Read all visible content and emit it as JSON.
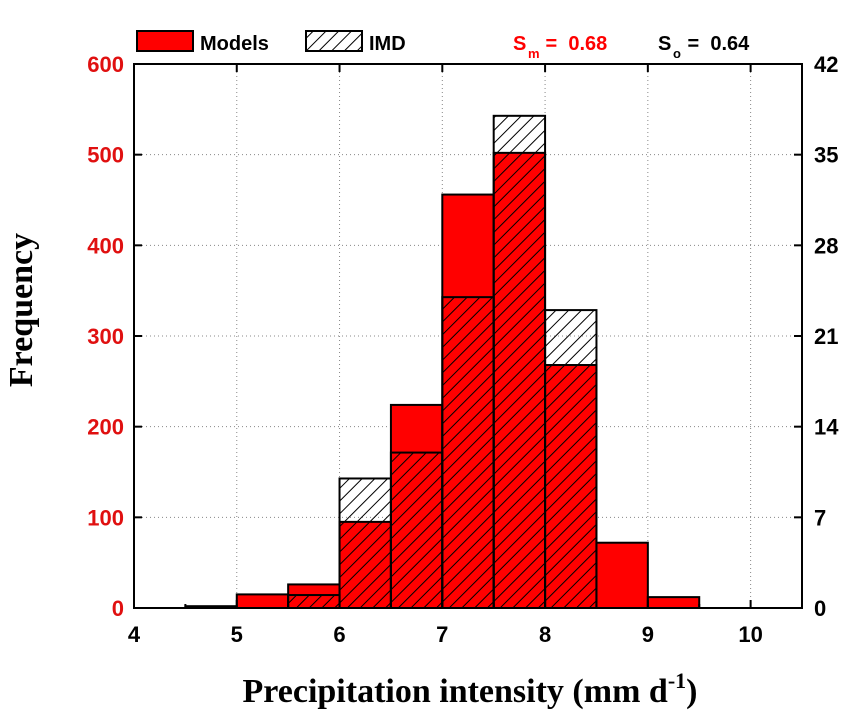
{
  "chart_data": {
    "type": "bar",
    "subtype": "overlapping histogram",
    "xlabel": "Precipitation intensity (mm d",
    "xlabel_superscript": "-1",
    "xlabel_close": ")",
    "ylabel": "Frequency",
    "x_ticks": [
      "4",
      "5",
      "6",
      "7",
      "8",
      "9",
      "10"
    ],
    "y_left_ticks": [
      "0",
      "100",
      "200",
      "300",
      "400",
      "500",
      "600"
    ],
    "y_right_ticks": [
      "0",
      "7",
      "14",
      "21",
      "28",
      "35",
      "42"
    ],
    "xlim": [
      4,
      10.5
    ],
    "ylim_left": [
      0,
      600
    ],
    "ylim_right": [
      0,
      42
    ],
    "grid": true,
    "bin_width": 0.5,
    "legend_position": "top",
    "series": [
      {
        "name": "Models",
        "axis": "left",
        "color": "#ff0000",
        "fill": "solid",
        "bins": [
          {
            "x": 4.5,
            "value": 2
          },
          {
            "x": 5.0,
            "value": 15
          },
          {
            "x": 5.5,
            "value": 26
          },
          {
            "x": 6.0,
            "value": 95
          },
          {
            "x": 6.5,
            "value": 224
          },
          {
            "x": 7.0,
            "value": 456
          },
          {
            "x": 7.5,
            "value": 502
          },
          {
            "x": 8.0,
            "value": 268
          },
          {
            "x": 8.5,
            "value": 72
          },
          {
            "x": 9.0,
            "value": 12
          }
        ]
      },
      {
        "name": "IMD",
        "axis": "right",
        "color": "#000000",
        "fill": "hatched",
        "bins": [
          {
            "x": 5.5,
            "value": 1
          },
          {
            "x": 6.0,
            "value": 10
          },
          {
            "x": 6.5,
            "value": 12
          },
          {
            "x": 7.0,
            "value": 24
          },
          {
            "x": 7.5,
            "value": 38
          },
          {
            "x": 8.0,
            "value": 23
          }
        ]
      }
    ],
    "annotations": [
      {
        "label": "S",
        "subscript": "m",
        "text": " =  0.68",
        "color": "#ff0000"
      },
      {
        "label": "S",
        "subscript": "o",
        "text": " =  0.64",
        "color": "#000000"
      }
    ],
    "colors": {
      "left_axis": "#e01010",
      "right_axis": "#000000"
    }
  }
}
